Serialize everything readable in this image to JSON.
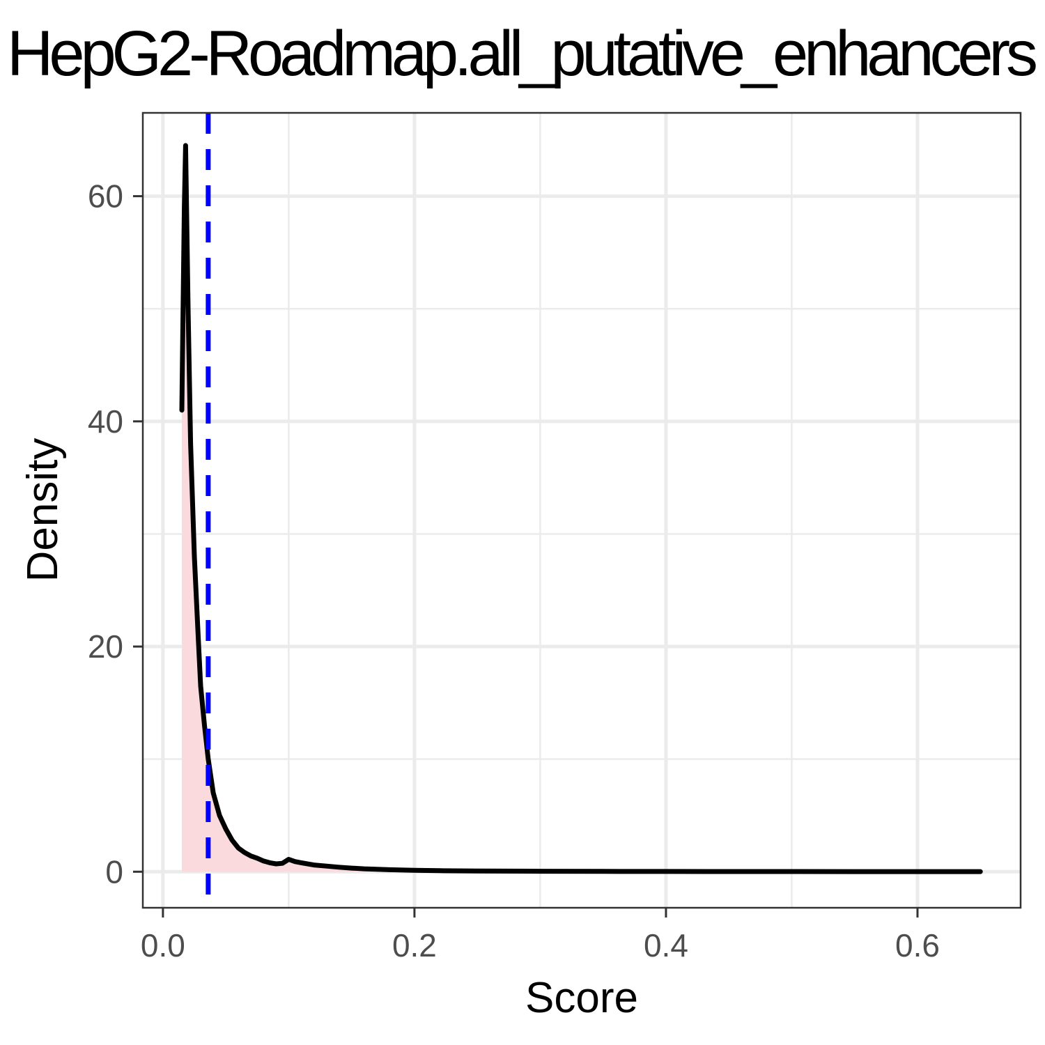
{
  "chart_data": {
    "type": "area",
    "title": "HepG2-Roadmap.all_putative_enhancers",
    "xlabel": "Score",
    "ylabel": "Density",
    "xlim": [
      -0.016,
      0.682
    ],
    "ylim": [
      -3.2,
      67.4
    ],
    "x_ticks": [
      {
        "value": 0.0,
        "label": "0.0"
      },
      {
        "value": 0.2,
        "label": "0.2"
      },
      {
        "value": 0.4,
        "label": "0.4"
      },
      {
        "value": 0.6,
        "label": "0.6"
      }
    ],
    "y_ticks": [
      {
        "value": 0,
        "label": "0"
      },
      {
        "value": 20,
        "label": "20"
      },
      {
        "value": 40,
        "label": "40"
      },
      {
        "value": 60,
        "label": "60"
      }
    ],
    "x_minor": [
      0.1,
      0.3,
      0.5
    ],
    "y_minor": [
      10,
      30,
      50
    ],
    "grid": true,
    "threshold": {
      "x": 0.036,
      "color": "#0000ff",
      "style": "dashed"
    },
    "series": [
      {
        "line_color": "#000000",
        "fill_color": "#fadadd",
        "x": [
          0.015,
          0.017,
          0.018,
          0.02,
          0.022,
          0.025,
          0.028,
          0.03,
          0.033,
          0.036,
          0.04,
          0.045,
          0.05,
          0.055,
          0.06,
          0.065,
          0.07,
          0.075,
          0.08,
          0.085,
          0.09,
          0.095,
          0.1,
          0.105,
          0.11,
          0.12,
          0.13,
          0.14,
          0.15,
          0.16,
          0.17,
          0.18,
          0.2,
          0.22,
          0.25,
          0.3,
          0.35,
          0.4,
          0.45,
          0.5,
          0.55,
          0.6,
          0.65
        ],
        "y": [
          41.0,
          59.0,
          64.5,
          50.0,
          38.0,
          28.0,
          21.0,
          16.5,
          13.0,
          10.0,
          7.0,
          5.0,
          3.8,
          2.8,
          2.1,
          1.7,
          1.4,
          1.2,
          0.95,
          0.8,
          0.7,
          0.75,
          1.1,
          0.9,
          0.8,
          0.6,
          0.5,
          0.4,
          0.32,
          0.26,
          0.22,
          0.18,
          0.13,
          0.09,
          0.06,
          0.04,
          0.03,
          0.025,
          0.02,
          0.015,
          0.012,
          0.01,
          0.01
        ]
      }
    ]
  }
}
